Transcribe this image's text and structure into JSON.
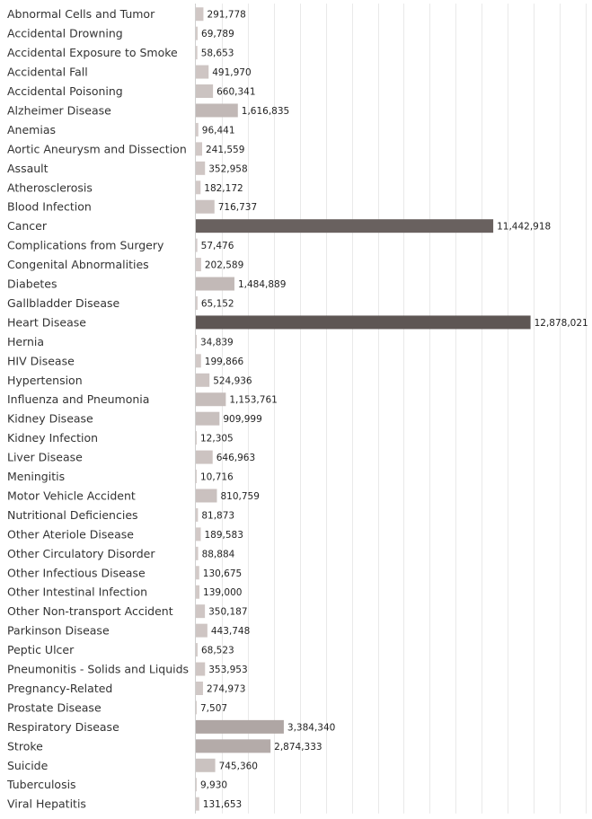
{
  "chart_data": {
    "type": "bar",
    "orientation": "horizontal",
    "categories": [
      "Abnormal Cells and Tumor",
      "Accidental Drowning",
      "Accidental Exposure to Smoke",
      "Accidental Fall",
      "Accidental Poisoning",
      "Alzheimer Disease",
      "Anemias",
      "Aortic Aneurysm and Dissection",
      "Assault",
      "Atherosclerosis",
      "Blood Infection",
      "Cancer",
      "Complications from Surgery",
      "Congenital Abnormalities",
      "Diabetes",
      "Gallbladder Disease",
      "Heart Disease",
      "Hernia",
      "HIV Disease",
      "Hypertension",
      "Influenza and Pneumonia",
      "Kidney Disease",
      "Kidney Infection",
      "Liver Disease",
      "Meningitis",
      "Motor Vehicle Accident",
      "Nutritional Deficiencies",
      "Other Ateriole Disease",
      "Other Circulatory Disorder",
      "Other Infectious Disease",
      "Other Intestinal Infection",
      "Other Non-transport Accident",
      "Parkinson Disease",
      "Peptic Ulcer",
      "Pneumonitis - Solids and Liquids",
      "Pregnancy-Related",
      "Prostate Disease",
      "Respiratory Disease",
      "Stroke",
      "Suicide",
      "Tuberculosis",
      "Viral Hepatitis"
    ],
    "values": [
      291778,
      69789,
      58653,
      491970,
      660341,
      1616835,
      96441,
      241559,
      352958,
      182172,
      716737,
      11442918,
      57476,
      202589,
      1484889,
      65152,
      12878021,
      34839,
      199866,
      524936,
      1153761,
      909999,
      12305,
      646963,
      10716,
      810759,
      81873,
      189583,
      88884,
      130675,
      139000,
      350187,
      443748,
      68523,
      353953,
      274973,
      7507,
      3384340,
      2874333,
      745360,
      9930,
      131653
    ],
    "value_labels": [
      "291,778",
      "69,789",
      "58,653",
      "491,970",
      "660,341",
      "1,616,835",
      "96,441",
      "241,559",
      "352,958",
      "182,172",
      "716,737",
      "11,442,918",
      "57,476",
      "202,589",
      "1,484,889",
      "65,152",
      "12,878,021",
      "34,839",
      "199,866",
      "524,936",
      "1,153,761",
      "909,999",
      "12,305",
      "646,963",
      "10,716",
      "810,759",
      "81,873",
      "189,583",
      "88,884",
      "130,675",
      "139,000",
      "350,187",
      "443,748",
      "68,523",
      "353,953",
      "274,973",
      "7,507",
      "3,384,340",
      "2,874,333",
      "745,360",
      "9,930",
      "131,653"
    ],
    "xlim": [
      0,
      15000000
    ],
    "grid": true,
    "legend": "none",
    "color_scale": {
      "low": "#d5ccca",
      "high": "#5e5654"
    }
  }
}
